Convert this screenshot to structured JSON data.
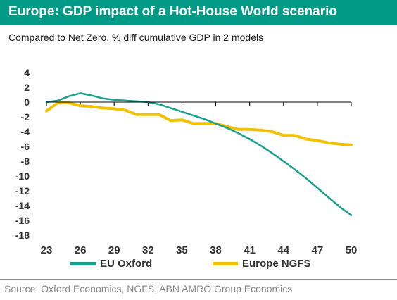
{
  "header": {
    "title": "Europe: GDP impact of a Hot-House World scenario",
    "subtitle": "Compared to Net Zero, % diff cumulative GDP in 2 models"
  },
  "footer": {
    "source": "Source: Oxford Economics, NGFS, ABN AMRO Group Economics"
  },
  "colors": {
    "header_bg": "#009a86",
    "eu_oxford": "#1aa08e",
    "europe_ngfs": "#f2c200",
    "axis": "#000000"
  },
  "chart_data": {
    "type": "line",
    "title": "Europe: GDP impact of a Hot-House World scenario",
    "subtitle": "Compared to Net Zero, % diff cumulative GDP in 2 models",
    "xlabel": "",
    "ylabel": "",
    "xlim": [
      23,
      50
    ],
    "ylim": [
      -18,
      4
    ],
    "xticks": [
      23,
      26,
      29,
      32,
      35,
      38,
      41,
      44,
      47,
      50
    ],
    "yticks": [
      4,
      2,
      0,
      -2,
      -4,
      -6,
      -8,
      -10,
      -12,
      -14,
      -16,
      -18
    ],
    "legend_position": "bottom",
    "grid": false,
    "x": [
      23,
      24,
      25,
      26,
      27,
      28,
      29,
      30,
      31,
      32,
      33,
      34,
      35,
      36,
      37,
      38,
      39,
      40,
      41,
      42,
      43,
      44,
      45,
      46,
      47,
      48,
      49,
      50
    ],
    "series": [
      {
        "name": "EU Oxford",
        "color": "#1aa08e",
        "values": [
          0.0,
          0.2,
          0.8,
          1.2,
          0.9,
          0.5,
          0.3,
          0.2,
          0.1,
          0.0,
          -0.3,
          -0.8,
          -1.3,
          -1.8,
          -2.3,
          -2.9,
          -3.5,
          -4.2,
          -5.0,
          -5.9,
          -6.9,
          -8.0,
          -9.1,
          -10.3,
          -11.6,
          -12.9,
          -14.2,
          -15.3
        ]
      },
      {
        "name": "Europe NGFS",
        "color": "#f2c200",
        "values": [
          -1.2,
          -0.1,
          -0.1,
          -0.5,
          -0.6,
          -0.8,
          -0.9,
          -1.1,
          -1.7,
          -1.7,
          -1.7,
          -2.5,
          -2.4,
          -2.9,
          -2.9,
          -2.9,
          -3.3,
          -3.7,
          -3.7,
          -3.8,
          -4.0,
          -4.5,
          -4.5,
          -5.0,
          -5.2,
          -5.5,
          -5.7,
          -5.8
        ]
      }
    ]
  }
}
